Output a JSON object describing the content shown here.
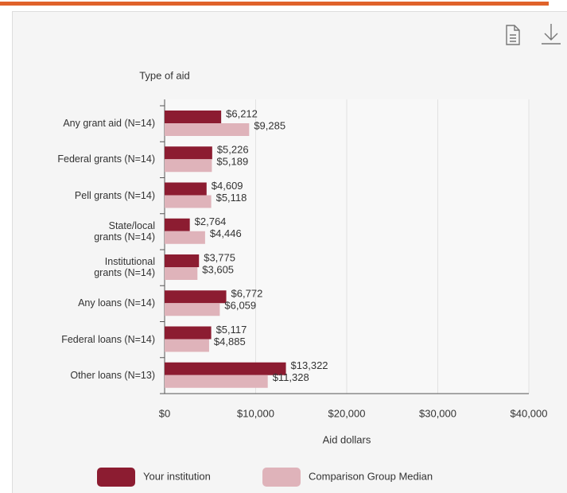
{
  "chart_data": {
    "type": "hbar",
    "y_axis_title": "Type of aid",
    "x_axis_title": "Aid dollars",
    "categories": [
      "Any grant aid (N=14)",
      "Federal grants (N=14)",
      "Pell grants (N=14)",
      "State/local grants (N=14)",
      "Institutional grants (N=14)",
      "Any loans (N=14)",
      "Federal loans (N=14)",
      "Other loans (N=13)"
    ],
    "series": [
      {
        "name": "Your institution",
        "color": "#8c1c31",
        "values": [
          6212,
          5226,
          4609,
          2764,
          3775,
          6772,
          5117,
          13322
        ],
        "value_labels": [
          "$6,212",
          "$5,226",
          "$4,609",
          "$2,764",
          "$3,775",
          "$6,772",
          "$5,117",
          "$13,322"
        ]
      },
      {
        "name": "Comparison Group Median",
        "color": "#dfb3ba",
        "values": [
          9285,
          5189,
          5118,
          4446,
          3605,
          6059,
          4885,
          11328
        ],
        "value_labels": [
          "$9,285",
          "$5,189",
          "$5,118",
          "$4,446",
          "$3,605",
          "$6,059",
          "$4,885",
          "$11,328"
        ]
      }
    ],
    "xlim": [
      0,
      40000
    ],
    "xticks": [
      {
        "value": 0,
        "label": "$0"
      },
      {
        "value": 10000,
        "label": "$10,000"
      },
      {
        "value": 20000,
        "label": "$20,000"
      },
      {
        "value": 30000,
        "label": "$30,000"
      },
      {
        "value": 40000,
        "label": "$40,000"
      }
    ],
    "grid": true
  }
}
